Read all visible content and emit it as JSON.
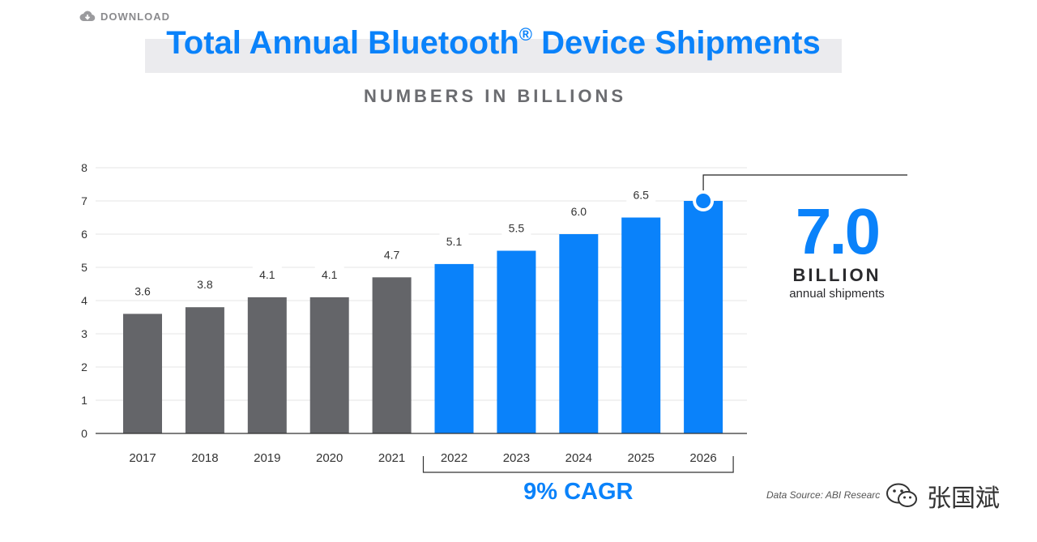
{
  "download": {
    "label": "DOWNLOAD",
    "icon": "cloud-download-icon"
  },
  "title": {
    "text": "Total Annual Bluetooth",
    "registered": "®",
    "text_after": " Device Shipments"
  },
  "subtitle": "NUMBERS IN BILLIONS",
  "chart_data": {
    "type": "bar",
    "title": "Total Annual Bluetooth® Device Shipments",
    "subtitle": "NUMBERS IN BILLIONS",
    "xlabel": "",
    "ylabel": "",
    "categories": [
      "2017",
      "2018",
      "2019",
      "2020",
      "2021",
      "2022",
      "2023",
      "2024",
      "2025",
      "2026"
    ],
    "values": [
      3.6,
      3.8,
      4.1,
      4.1,
      4.7,
      5.1,
      5.5,
      6.0,
      6.5,
      7.0
    ],
    "labels": [
      "3.6",
      "3.8",
      "4.1",
      "4.1",
      "4.7",
      "5.1",
      "5.5",
      "6.0",
      "6.5",
      ""
    ],
    "ylim": [
      0,
      8
    ],
    "yticks": [
      "0",
      "1",
      "2",
      "3",
      "4",
      "5",
      "6",
      "7",
      "8"
    ],
    "grid": true,
    "highlight_from_index": 5,
    "colors": {
      "historical": "#646569",
      "forecast": "#0a82fa"
    },
    "bracket_label": "9% CAGR"
  },
  "callout": {
    "value": "7.0",
    "unit": "BILLION",
    "caption": "annual shipments"
  },
  "source": "Data Source: ABI Researc",
  "watermark": {
    "name": "张国斌",
    "icon": "wechat-icon"
  }
}
